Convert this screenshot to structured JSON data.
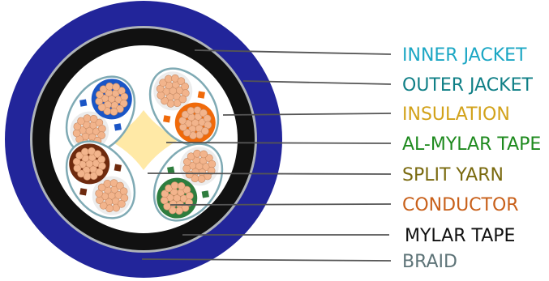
{
  "labels": [
    {
      "key": "inner_jacket",
      "text": "INNER JACKET",
      "color": "#1CA7C4"
    },
    {
      "key": "outer_jacket",
      "text": "OUTER JACKET",
      "color": "#0F7F86"
    },
    {
      "key": "insulation",
      "text": "INSULATION",
      "color": "#D2A21A"
    },
    {
      "key": "al_mylar_tape",
      "text": "AL-MYLAR TAPE",
      "color": "#1E8A1E"
    },
    {
      "key": "split_yarn",
      "text": "SPLIT YARN",
      "color": "#7A6A0F"
    },
    {
      "key": "conductor",
      "text": "CONDUCTOR",
      "color": "#C8601A"
    },
    {
      "key": "mylar_tape",
      "text": "MYLAR TAPE",
      "color": "#111111"
    },
    {
      "key": "braid",
      "text": "BRAID",
      "color": "#5E7478"
    }
  ],
  "colors": {
    "outer_jacket": "#22259A",
    "braid": "#AEB3B8",
    "inner_jacket": "#111111",
    "mylar_tape": "#FFFFFF",
    "al_mylar_tape": "#7FAAB4",
    "split_yarn": "#FFE9A6",
    "conductor": "#F2B48C",
    "pair_blue": "#1A55C6",
    "pair_orange": "#F06A0A",
    "pair_brown": "#6E2A0E",
    "pair_green": "#2E7D3E",
    "white_wire": "#ECECEC"
  }
}
